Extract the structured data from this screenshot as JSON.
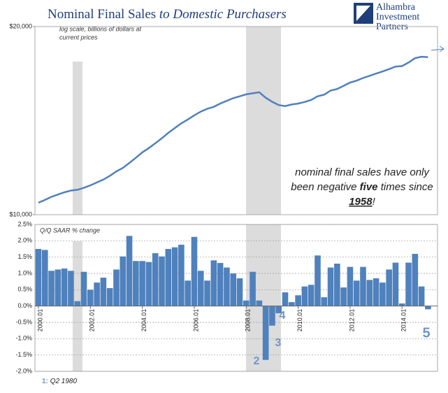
{
  "header": {
    "title": "Nominal Final Sales",
    "title_italic": "to Domestic Purchasers",
    "logo": [
      "Alhambra",
      "Investment",
      "Partners"
    ]
  },
  "chart_data": [
    {
      "type": "line",
      "log_scale": true,
      "color": "#4f81bd",
      "note": [
        "log scale, billions of dollars at",
        "current prices"
      ],
      "ylim": [
        10000,
        20000
      ],
      "yticks": [
        {
          "value": 10000,
          "label": "$10,000"
        },
        {
          "value": 20000,
          "label": "$20,000"
        }
      ],
      "values": [
        10450,
        10560,
        10680,
        10770,
        10860,
        10930,
        10960,
        11040,
        11140,
        11260,
        11380,
        11540,
        11730,
        11880,
        12100,
        12330,
        12580,
        12780,
        13010,
        13250,
        13520,
        13760,
        14000,
        14200,
        14420,
        14620,
        14770,
        14880,
        15060,
        15210,
        15360,
        15470,
        15580,
        15640,
        15700,
        15390,
        15160,
        14980,
        14920,
        15010,
        15060,
        15150,
        15260,
        15470,
        15560,
        15800,
        15890,
        16080,
        16270,
        16390,
        16550,
        16680,
        16820,
        16950,
        17100,
        17260,
        17290,
        17520,
        17800,
        17900,
        17870
      ],
      "annotation": {
        "line1": "nominal final sales have only",
        "pre": "been negative",
        "bold": "five",
        "mid": "times since",
        "underlined": "1958",
        "post": "!"
      }
    },
    {
      "type": "bar",
      "color": "#4f81bd",
      "grid": true,
      "note": "Q/Q SAAR % change",
      "ylim": [
        -2.0,
        2.5
      ],
      "yticks": [
        {
          "value": -2.0,
          "label": "-2.0%"
        },
        {
          "value": -1.5,
          "label": "-1.5%"
        },
        {
          "value": -1.0,
          "label": "-1.0%"
        },
        {
          "value": -0.5,
          "label": "-0.5%"
        },
        {
          "value": 0.0,
          "label": "0.0%"
        },
        {
          "value": 0.5,
          "label": "0.5%"
        },
        {
          "value": 1.0,
          "label": "1.0%"
        },
        {
          "value": 1.5,
          "label": "1.5%"
        },
        {
          "value": 2.0,
          "label": "2.0%"
        },
        {
          "value": 2.5,
          "label": "2.5%"
        }
      ],
      "categories": [
        "2000.01",
        null,
        null,
        null,
        null,
        null,
        null,
        null,
        "2002.01",
        null,
        null,
        null,
        null,
        null,
        null,
        null,
        "2004.01",
        null,
        null,
        null,
        null,
        null,
        null,
        null,
        "2006.01",
        null,
        null,
        null,
        null,
        null,
        null,
        null,
        "2008.01",
        null,
        null,
        null,
        null,
        null,
        null,
        null,
        "2010.01",
        null,
        null,
        null,
        null,
        null,
        null,
        null,
        "2012.01",
        null,
        null,
        null,
        null,
        null,
        null,
        null,
        "2014.01",
        null,
        null,
        null,
        null
      ],
      "values": [
        1.75,
        1.72,
        1.08,
        1.12,
        1.15,
        1.08,
        0.15,
        1.05,
        0.5,
        0.72,
        0.87,
        0.55,
        1.12,
        1.52,
        2.15,
        1.38,
        1.38,
        1.35,
        1.62,
        1.52,
        1.75,
        1.8,
        1.88,
        0.78,
        2.12,
        1.08,
        0.78,
        1.4,
        1.32,
        1.18,
        1.0,
        0.85,
        0.17,
        1.05,
        0.17,
        -1.65,
        -0.6,
        -0.22,
        0.42,
        0.12,
        0.33,
        0.6,
        0.65,
        1.55,
        0.27,
        1.18,
        1.3,
        0.57,
        1.2,
        0.78,
        1.2,
        0.8,
        0.85,
        0.72,
        1.12,
        1.33,
        0.08,
        1.33,
        1.6,
        0.6,
        -0.1
      ],
      "markers": [
        "2",
        "3",
        "4",
        "5"
      ],
      "footnote": {
        "num": "1:",
        "text": "Q2 1980"
      }
    }
  ]
}
